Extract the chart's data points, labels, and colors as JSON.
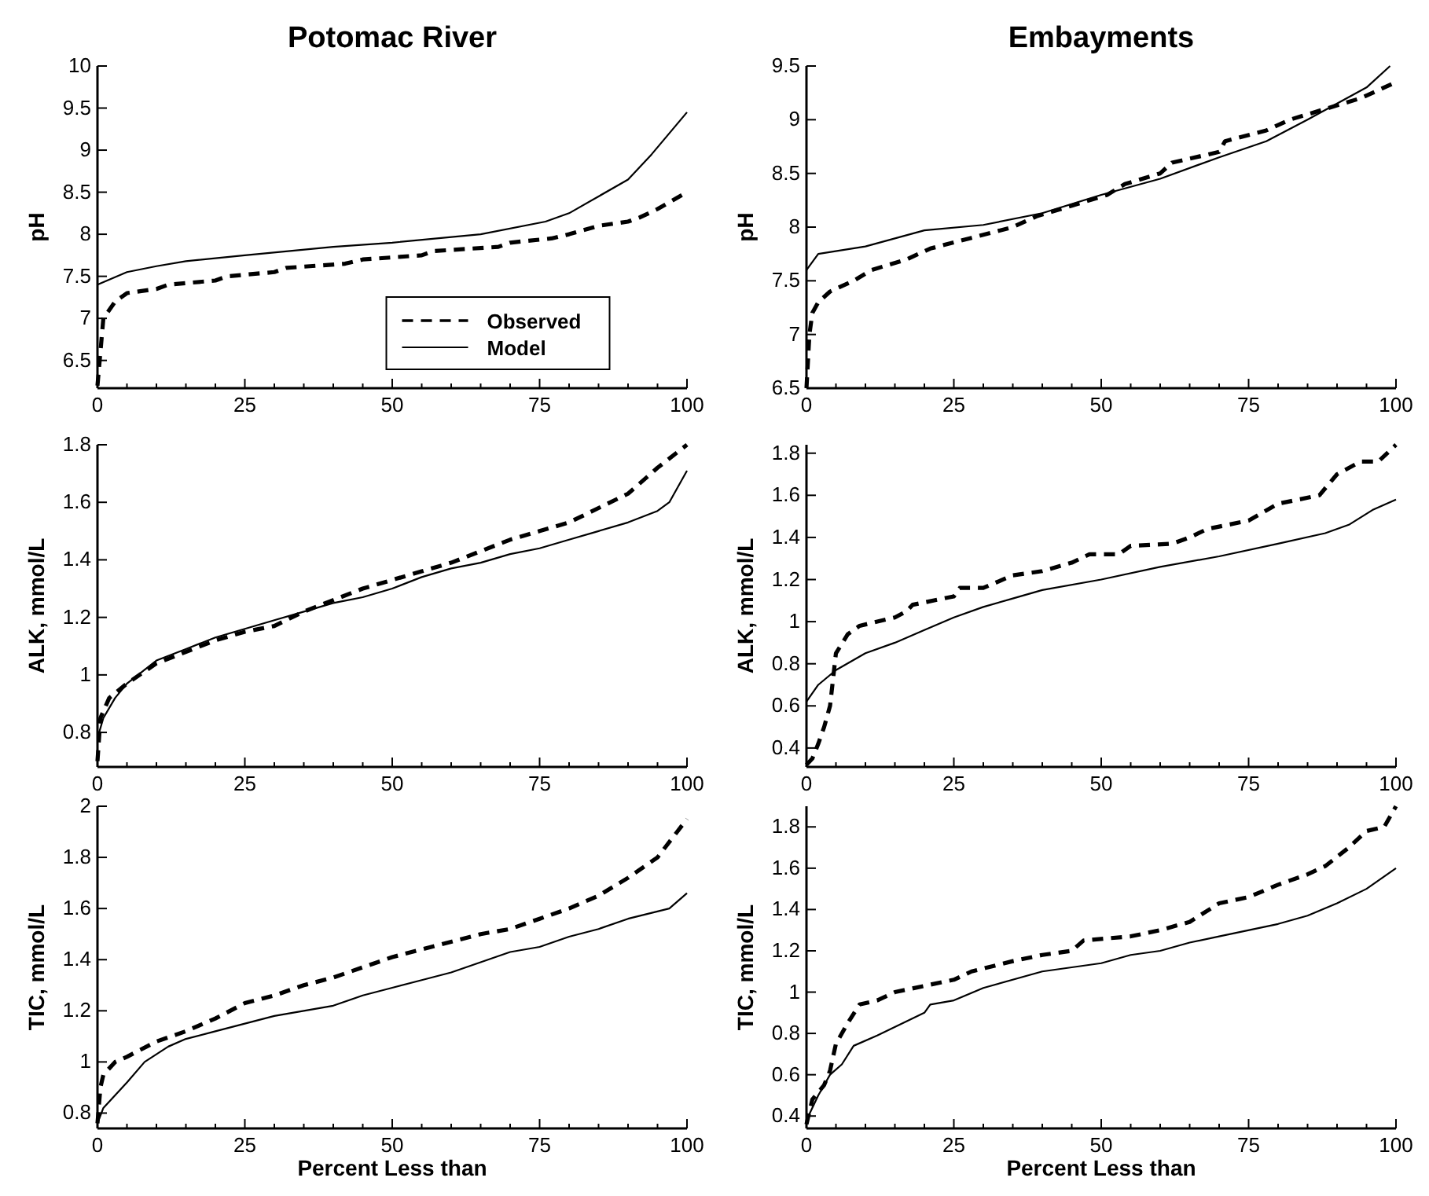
{
  "chart_data": [
    {
      "type": "line",
      "title": "Potomac River",
      "ylabel": "pH",
      "xlim": [
        0,
        100
      ],
      "xticks": [
        0,
        {
          "value": 5,
          "label": null
        },
        {
          "value": 10,
          "label": null
        },
        {
          "value": 15,
          "label": null
        },
        {
          "value": 20,
          "label": null
        },
        25,
        {
          "value": 30,
          "label": null
        },
        {
          "value": 35,
          "label": null
        },
        {
          "value": 40,
          "label": null
        },
        {
          "value": 45,
          "label": null
        },
        50,
        {
          "value": 55,
          "label": null
        },
        {
          "value": 60,
          "label": null
        },
        {
          "value": 65,
          "label": null
        },
        {
          "value": 70,
          "label": null
        },
        75,
        {
          "value": 80,
          "label": null
        },
        {
          "value": 85,
          "label": null
        },
        {
          "value": 90,
          "label": null
        },
        {
          "value": 95,
          "label": null
        },
        100
      ],
      "ylim": [
        6.17,
        10
      ],
      "yticks": [
        6.5,
        7,
        7.5,
        8,
        8.5,
        9,
        9.5,
        10
      ],
      "grid": false,
      "legend": "bottom right",
      "series": [
        {
          "name": "Observed",
          "color": "#000000",
          "line_style": "dashed",
          "x": [
            0,
            0.5,
            1,
            3,
            5,
            10,
            12,
            20,
            22,
            30,
            32,
            42,
            45,
            55,
            57,
            68,
            70,
            77,
            80,
            85,
            90,
            92,
            95,
            100
          ],
          "values": [
            6.2,
            6.6,
            7.0,
            7.2,
            7.3,
            7.35,
            7.4,
            7.45,
            7.5,
            7.55,
            7.6,
            7.65,
            7.7,
            7.75,
            7.8,
            7.85,
            7.9,
            7.95,
            8.0,
            8.1,
            8.15,
            8.2,
            8.3,
            8.5
          ]
        },
        {
          "name": "Model",
          "color": "#000000",
          "line_style": "solid",
          "x": [
            0,
            5,
            10,
            15,
            25,
            40,
            50,
            65,
            76,
            80,
            85,
            90,
            92,
            94,
            97,
            100
          ],
          "values": [
            7.4,
            7.55,
            7.62,
            7.68,
            7.75,
            7.85,
            7.9,
            8.0,
            8.15,
            8.25,
            8.45,
            8.65,
            8.8,
            8.95,
            9.2,
            9.45
          ]
        }
      ]
    },
    {
      "type": "line",
      "title": "Embayments",
      "ylabel": "pH",
      "xlim": [
        0,
        100
      ],
      "xticks": [
        0,
        {
          "value": 5,
          "label": null
        },
        {
          "value": 10,
          "label": null
        },
        {
          "value": 15,
          "label": null
        },
        {
          "value": 20,
          "label": null
        },
        25,
        {
          "value": 30,
          "label": null
        },
        {
          "value": 35,
          "label": null
        },
        {
          "value": 40,
          "label": null
        },
        {
          "value": 45,
          "label": null
        },
        50,
        {
          "value": 55,
          "label": null
        },
        {
          "value": 60,
          "label": null
        },
        {
          "value": 65,
          "label": null
        },
        {
          "value": 70,
          "label": null
        },
        75,
        {
          "value": 80,
          "label": null
        },
        {
          "value": 85,
          "label": null
        },
        {
          "value": 90,
          "label": null
        },
        {
          "value": 95,
          "label": null
        },
        100
      ],
      "ylim": [
        6.5,
        9.5
      ],
      "yticks": [
        6.5,
        7,
        7.5,
        8,
        8.5,
        9,
        9.5
      ],
      "grid": false,
      "series": [
        {
          "color": "#000000",
          "line_style": "dashed",
          "x": [
            0,
            0.5,
            1,
            2,
            4,
            8,
            11,
            17,
            21,
            28,
            35,
            39,
            45,
            51,
            54,
            60,
            62,
            70,
            71,
            78,
            82,
            88,
            94,
            100
          ],
          "values": [
            6.5,
            7.0,
            7.2,
            7.3,
            7.4,
            7.5,
            7.6,
            7.7,
            7.8,
            7.9,
            8.0,
            8.1,
            8.2,
            8.3,
            8.4,
            8.5,
            8.6,
            8.7,
            8.8,
            8.9,
            9.0,
            9.1,
            9.2,
            9.35
          ]
        },
        {
          "color": "#000000",
          "line_style": "solid",
          "x": [
            0,
            2,
            10,
            20,
            30,
            40,
            50,
            60,
            70,
            78,
            85,
            90,
            95,
            99
          ],
          "values": [
            7.6,
            7.75,
            7.82,
            7.97,
            8.02,
            8.13,
            8.3,
            8.45,
            8.65,
            8.8,
            9.0,
            9.15,
            9.3,
            9.5
          ]
        }
      ]
    },
    {
      "type": "line",
      "ylabel": "ALK, mmol/L",
      "xlim": [
        0,
        100
      ],
      "xticks": [
        0,
        {
          "value": 5,
          "label": null
        },
        {
          "value": 10,
          "label": null
        },
        {
          "value": 15,
          "label": null
        },
        {
          "value": 20,
          "label": null
        },
        25,
        {
          "value": 30,
          "label": null
        },
        {
          "value": 35,
          "label": null
        },
        {
          "value": 40,
          "label": null
        },
        {
          "value": 45,
          "label": null
        },
        50,
        {
          "value": 55,
          "label": null
        },
        {
          "value": 60,
          "label": null
        },
        {
          "value": 65,
          "label": null
        },
        {
          "value": 70,
          "label": null
        },
        75,
        {
          "value": 80,
          "label": null
        },
        {
          "value": 85,
          "label": null
        },
        {
          "value": 90,
          "label": null
        },
        {
          "value": 95,
          "label": null
        },
        100
      ],
      "ylim": [
        0.68,
        1.8
      ],
      "yticks": [
        0.8,
        1,
        1.2,
        1.4,
        1.6,
        1.8
      ],
      "grid": false,
      "series": [
        {
          "color": "#000000",
          "line_style": "dashed",
          "x": [
            0,
            0.5,
            2,
            5,
            10,
            15,
            20,
            25,
            30,
            35,
            40,
            45,
            50,
            55,
            60,
            65,
            70,
            75,
            80,
            85,
            90,
            95,
            100
          ],
          "values": [
            0.7,
            0.85,
            0.92,
            0.97,
            1.04,
            1.08,
            1.12,
            1.15,
            1.17,
            1.22,
            1.26,
            1.3,
            1.33,
            1.36,
            1.39,
            1.43,
            1.47,
            1.5,
            1.53,
            1.58,
            1.63,
            1.72,
            1.8
          ]
        },
        {
          "color": "#000000",
          "line_style": "solid",
          "x": [
            0,
            1,
            3,
            5,
            10,
            15,
            20,
            25,
            30,
            35,
            40,
            45,
            50,
            55,
            60,
            65,
            70,
            75,
            80,
            85,
            90,
            95,
            97,
            100
          ],
          "values": [
            0.78,
            0.85,
            0.92,
            0.97,
            1.05,
            1.09,
            1.13,
            1.16,
            1.19,
            1.22,
            1.25,
            1.27,
            1.3,
            1.34,
            1.37,
            1.39,
            1.42,
            1.44,
            1.47,
            1.5,
            1.53,
            1.57,
            1.6,
            1.71
          ]
        }
      ]
    },
    {
      "type": "line",
      "ylabel": "ALK, mmol/L",
      "xlim": [
        0,
        100
      ],
      "xticks": [
        0,
        {
          "value": 5,
          "label": null
        },
        {
          "value": 10,
          "label": null
        },
        {
          "value": 15,
          "label": null
        },
        {
          "value": 20,
          "label": null
        },
        25,
        {
          "value": 30,
          "label": null
        },
        {
          "value": 35,
          "label": null
        },
        {
          "value": 40,
          "label": null
        },
        {
          "value": 45,
          "label": null
        },
        50,
        {
          "value": 55,
          "label": null
        },
        {
          "value": 60,
          "label": null
        },
        {
          "value": 65,
          "label": null
        },
        {
          "value": 70,
          "label": null
        },
        75,
        {
          "value": 80,
          "label": null
        },
        {
          "value": 85,
          "label": null
        },
        {
          "value": 90,
          "label": null
        },
        {
          "value": 95,
          "label": null
        },
        100
      ],
      "ylim": [
        0.31,
        1.84
      ],
      "yticks": [
        0.4,
        0.6,
        0.8,
        1,
        1.2,
        1.4,
        1.6,
        1.8
      ],
      "grid": false,
      "series": [
        {
          "color": "#000000",
          "line_style": "dashed",
          "x": [
            0,
            1,
            2,
            3,
            4,
            5,
            7,
            9,
            15,
            17,
            18,
            25,
            26,
            30,
            35,
            40,
            45,
            48,
            53,
            55,
            62,
            65,
            68,
            75,
            80,
            87,
            90,
            94,
            97,
            100
          ],
          "values": [
            0.32,
            0.35,
            0.42,
            0.5,
            0.6,
            0.85,
            0.94,
            0.98,
            1.02,
            1.05,
            1.08,
            1.12,
            1.16,
            1.16,
            1.22,
            1.24,
            1.28,
            1.32,
            1.32,
            1.36,
            1.37,
            1.4,
            1.44,
            1.48,
            1.56,
            1.6,
            1.7,
            1.76,
            1.76,
            1.84
          ]
        },
        {
          "color": "#000000",
          "line_style": "solid",
          "x": [
            0,
            2,
            5,
            10,
            15,
            20,
            25,
            30,
            35,
            40,
            50,
            60,
            70,
            80,
            88,
            92,
            96,
            100
          ],
          "values": [
            0.62,
            0.7,
            0.77,
            0.85,
            0.9,
            0.96,
            1.02,
            1.07,
            1.11,
            1.15,
            1.2,
            1.26,
            1.31,
            1.37,
            1.42,
            1.46,
            1.53,
            1.58
          ]
        }
      ]
    },
    {
      "type": "line",
      "xlabel": "Percent Less than",
      "ylabel": "TIC, mmol/L",
      "xlim": [
        0,
        100
      ],
      "xticks": [
        0,
        {
          "value": 5,
          "label": null
        },
        {
          "value": 10,
          "label": null
        },
        {
          "value": 15,
          "label": null
        },
        {
          "value": 20,
          "label": null
        },
        25,
        {
          "value": 30,
          "label": null
        },
        {
          "value": 35,
          "label": null
        },
        {
          "value": 40,
          "label": null
        },
        {
          "value": 45,
          "label": null
        },
        50,
        {
          "value": 55,
          "label": null
        },
        {
          "value": 60,
          "label": null
        },
        {
          "value": 65,
          "label": null
        },
        {
          "value": 70,
          "label": null
        },
        75,
        {
          "value": 80,
          "label": null
        },
        {
          "value": 85,
          "label": null
        },
        {
          "value": 90,
          "label": null
        },
        {
          "value": 95,
          "label": null
        },
        100
      ],
      "ylim": [
        0.74,
        2
      ],
      "yticks": [
        0.8,
        1,
        1.2,
        1.4,
        1.6,
        1.8,
        2
      ],
      "grid": false,
      "series": [
        {
          "color": "#000000",
          "line_style": "dashed",
          "x": [
            0,
            0.5,
            1,
            3,
            5,
            10,
            15,
            20,
            25,
            30,
            35,
            40,
            45,
            50,
            55,
            60,
            65,
            70,
            75,
            80,
            85,
            90,
            95,
            100
          ],
          "values": [
            0.76,
            0.9,
            0.95,
            1.0,
            1.02,
            1.08,
            1.12,
            1.17,
            1.23,
            1.26,
            1.3,
            1.33,
            1.37,
            1.41,
            1.44,
            1.47,
            1.5,
            1.52,
            1.56,
            1.6,
            1.65,
            1.72,
            1.8,
            1.95
          ]
        },
        {
          "color": "#000000",
          "line_style": "solid",
          "x": [
            0,
            1,
            3,
            5,
            8,
            12,
            15,
            20,
            25,
            30,
            40,
            45,
            50,
            55,
            60,
            65,
            70,
            75,
            80,
            85,
            90,
            97,
            100
          ],
          "values": [
            0.76,
            0.82,
            0.87,
            0.92,
            1.0,
            1.06,
            1.09,
            1.12,
            1.15,
            1.18,
            1.22,
            1.26,
            1.29,
            1.32,
            1.35,
            1.39,
            1.43,
            1.45,
            1.49,
            1.52,
            1.56,
            1.6,
            1.66
          ]
        }
      ]
    },
    {
      "type": "line",
      "xlabel": "Percent Less than",
      "ylabel": "TIC, mmol/L",
      "xlim": [
        0,
        100
      ],
      "xticks": [
        0,
        {
          "value": 5,
          "label": null
        },
        {
          "value": 10,
          "label": null
        },
        {
          "value": 15,
          "label": null
        },
        {
          "value": 20,
          "label": null
        },
        25,
        {
          "value": 30,
          "label": null
        },
        {
          "value": 35,
          "label": null
        },
        {
          "value": 40,
          "label": null
        },
        {
          "value": 45,
          "label": null
        },
        50,
        {
          "value": 55,
          "label": null
        },
        {
          "value": 60,
          "label": null
        },
        {
          "value": 65,
          "label": null
        },
        {
          "value": 70,
          "label": null
        },
        75,
        {
          "value": 80,
          "label": null
        },
        {
          "value": 85,
          "label": null
        },
        {
          "value": 90,
          "label": null
        },
        {
          "value": 95,
          "label": null
        },
        100
      ],
      "ylim": [
        0.34,
        1.9
      ],
      "yticks": [
        0.4,
        0.6,
        0.8,
        1,
        1.2,
        1.4,
        1.6,
        1.8
      ],
      "grid": false,
      "series": [
        {
          "color": "#000000",
          "line_style": "dashed",
          "x": [
            0,
            1,
            3,
            4,
            5,
            7,
            9,
            12,
            15,
            20,
            25,
            28,
            35,
            40,
            45,
            47,
            55,
            60,
            65,
            70,
            75,
            80,
            85,
            88,
            92,
            95,
            98,
            100
          ],
          "values": [
            0.36,
            0.48,
            0.55,
            0.62,
            0.75,
            0.85,
            0.94,
            0.96,
            1.0,
            1.03,
            1.06,
            1.1,
            1.15,
            1.18,
            1.2,
            1.25,
            1.27,
            1.3,
            1.34,
            1.43,
            1.46,
            1.52,
            1.57,
            1.61,
            1.7,
            1.78,
            1.8,
            1.9
          ]
        },
        {
          "color": "#000000",
          "line_style": "solid",
          "x": [
            0,
            2,
            4,
            6,
            8,
            12,
            20,
            21,
            25,
            30,
            40,
            50,
            55,
            60,
            65,
            70,
            80,
            85,
            90,
            95,
            100
          ],
          "values": [
            0.38,
            0.5,
            0.6,
            0.65,
            0.74,
            0.79,
            0.9,
            0.94,
            0.96,
            1.02,
            1.1,
            1.14,
            1.18,
            1.2,
            1.24,
            1.27,
            1.33,
            1.37,
            1.43,
            1.5,
            1.6
          ]
        }
      ]
    }
  ]
}
